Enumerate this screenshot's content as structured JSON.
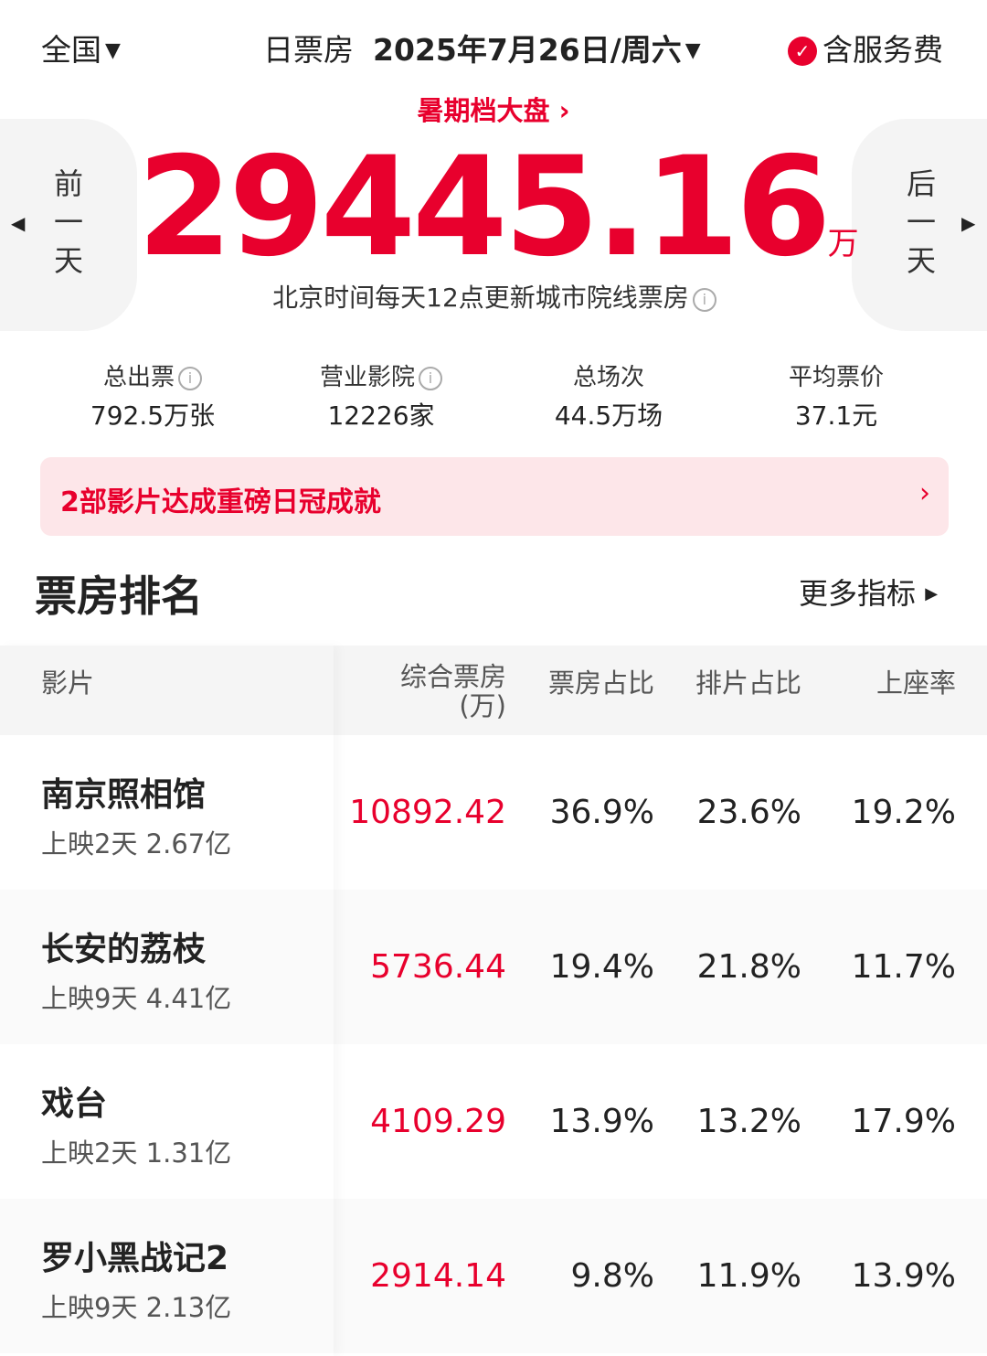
{
  "header": {
    "region": "全国",
    "mode": "日票房",
    "date": "2025年7月26日/周六",
    "service_fee": "含服务费"
  },
  "summer_link": "暑期档大盘",
  "total": {
    "value": "29445.16",
    "unit": "万",
    "note": "北京时间每天12点更新城市院线票房"
  },
  "nav": {
    "prev": [
      "前",
      "一",
      "天"
    ],
    "next": [
      "后",
      "一",
      "天"
    ]
  },
  "stats": [
    {
      "label": "总出票",
      "value": "792.5万张"
    },
    {
      "label": "营业影院",
      "value": "12226家"
    },
    {
      "label": "总场次",
      "value": "44.5万场"
    },
    {
      "label": "平均票价",
      "value": "37.1元"
    }
  ],
  "banner": "2部影片达成重磅日冠成就",
  "ranking": {
    "title": "票房排名",
    "more": "更多指标"
  },
  "table": {
    "headers": [
      "影片",
      "综合票房",
      "(万)",
      "票房占比",
      "排片占比",
      "上座率"
    ],
    "rows": [
      {
        "name": "南京照相馆",
        "sub": "上映2天  2.67亿",
        "gross": "10892.42",
        "share": "36.9%",
        "screen": "23.6%",
        "seat": "19.2%"
      },
      {
        "name": "长安的荔枝",
        "sub": "上映9天  4.41亿",
        "gross": "5736.44",
        "share": "19.4%",
        "screen": "21.8%",
        "seat": "11.7%"
      },
      {
        "name": "戏台",
        "sub": "上映2天  1.31亿",
        "gross": "4109.29",
        "share": "13.9%",
        "screen": "13.2%",
        "seat": "17.9%"
      },
      {
        "name": "罗小黑战记2",
        "sub": "上映9天  2.13亿",
        "gross": "2914.14",
        "share": "9.8%",
        "screen": "11.9%",
        "seat": "13.9%"
      }
    ]
  },
  "colors": {
    "accent": "#e8002d",
    "banner_bg": "#fde6e9"
  }
}
